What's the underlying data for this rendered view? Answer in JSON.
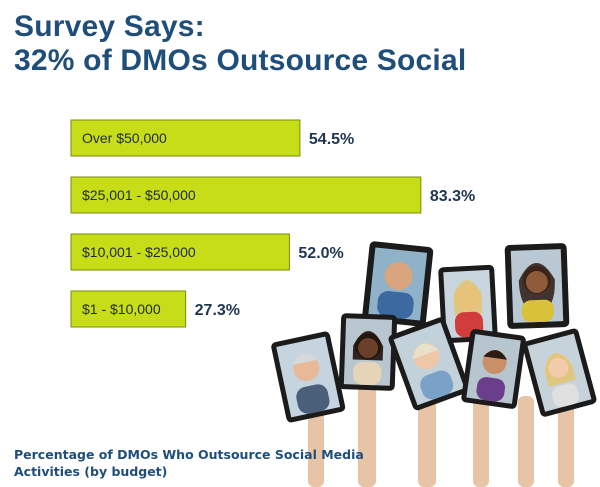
{
  "header": {
    "title_line1": "Survey Says:",
    "title_line2": "32% of DMOs Outsource Social"
  },
  "colors": {
    "title": "#1f4e7a",
    "bar_fill": "#c7dd18",
    "bar_border": "#7a8a0c",
    "value_text": "#1f3550"
  },
  "chart_data": {
    "type": "bar",
    "orientation": "horizontal",
    "title": "Survey Says: 32% of DMOs Outsource Social",
    "caption": "Percentage of DMOs Who Outsource Social Media Activities (by budget)",
    "categories": [
      "Over $50,000",
      "$25,001 - $50,000",
      "$10,001 - $25,000",
      "$1 - $10,000"
    ],
    "values": [
      54.5,
      83.3,
      52.0,
      27.3
    ],
    "value_labels": [
      "54.5%",
      "83.3%",
      "52.0%",
      "27.3%"
    ],
    "unit": "%",
    "xlim": [
      0,
      100
    ],
    "grid": false,
    "legend": "none"
  },
  "footer": {
    "caption": "Percentage of DMOs Who Outsource Social Media Activities (by budget)"
  },
  "image": {
    "description_icon": "people-holding-tablets-photo"
  }
}
